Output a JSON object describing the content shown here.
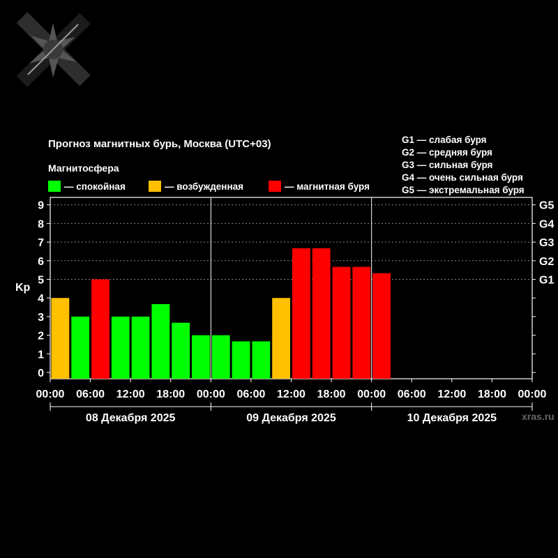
{
  "title": "Прогноз магнитных бурь, Москва (UTC+03)",
  "subtitle": "Магнитосфера",
  "legend": [
    {
      "label": "— спокойная",
      "color": "#00ff00"
    },
    {
      "label": "— возбужденная",
      "color": "#ffc000"
    },
    {
      "label": "— магнитная буря",
      "color": "#ff0000"
    }
  ],
  "storm_levels": [
    "G1 — слабая буря",
    "G2 — средняя буря",
    "G3 — сильная буря",
    "G4 — очень сильная буря",
    "G5 — экстремальная буря"
  ],
  "watermark": "xras.ru",
  "logo": "xras-logo-icon",
  "chart_data": {
    "type": "bar",
    "ylabel": "Kp",
    "ylim": [
      0,
      9
    ],
    "yticks": [
      0,
      1,
      2,
      3,
      4,
      5,
      6,
      7,
      8,
      9
    ],
    "right_ticks": [
      {
        "label": "G1",
        "kp": 5
      },
      {
        "label": "G2",
        "kp": 6
      },
      {
        "label": "G3",
        "kp": 7
      },
      {
        "label": "G4",
        "kp": 8
      },
      {
        "label": "G5",
        "kp": 9
      }
    ],
    "x_tick_labels": [
      "00:00",
      "06:00",
      "12:00",
      "18:00",
      "00:00",
      "06:00",
      "12:00",
      "18:00",
      "00:00",
      "06:00",
      "12:00",
      "18:00",
      "00:00"
    ],
    "days": [
      "08 Декабря 2025",
      "09 Декабря 2025",
      "10 Декабря 2025"
    ],
    "grid": "dotted horizontal at Kp 5–9",
    "slots_per_day": 8,
    "colors": {
      "quiet": "#00ff00",
      "active": "#ffc000",
      "storm": "#ff0000"
    },
    "series": [
      {
        "values": [
          4.0,
          3.0,
          5.0,
          3.0,
          3.0,
          3.67,
          2.67,
          2.0,
          2.0,
          1.67,
          1.67,
          4.0,
          6.67,
          6.67,
          5.67,
          5.67,
          5.33
        ]
      }
    ]
  }
}
